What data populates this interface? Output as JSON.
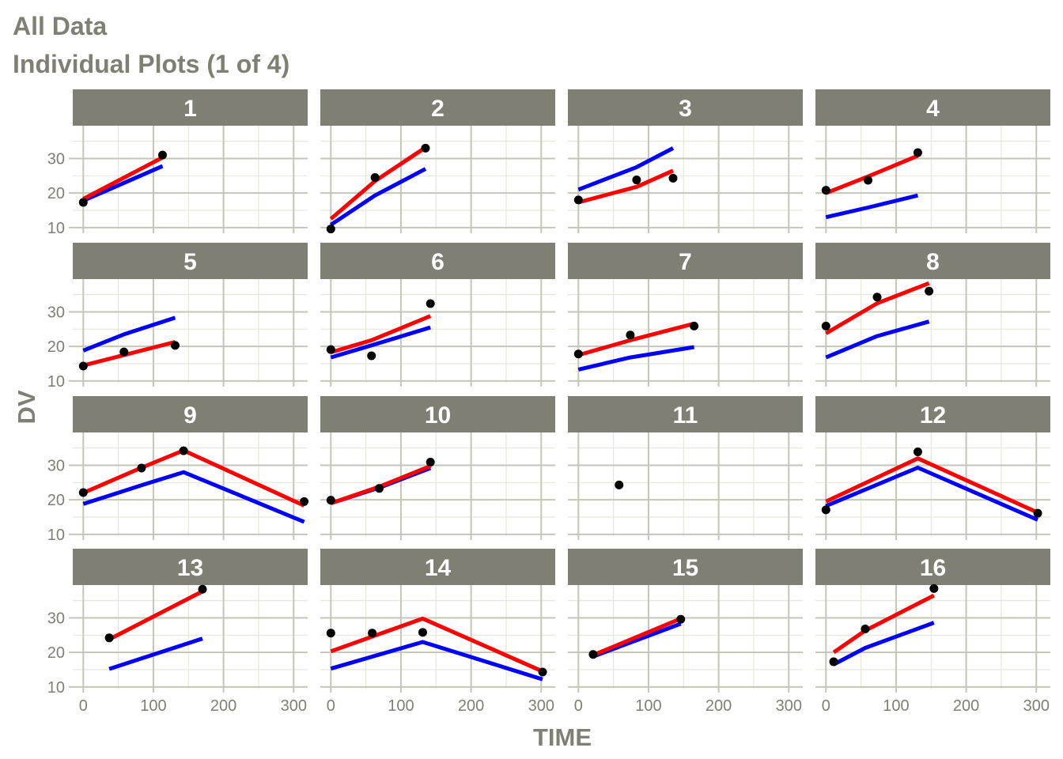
{
  "title": "All Data",
  "subtitle": "Individual Plots (1 of 4)",
  "colors": {
    "strip_bg": "#7f7f74",
    "strip_text": "#ffffff",
    "panel_bg": "#ffffff",
    "grid_major": "#c6c6b8",
    "grid_minor": "#e7e7da",
    "text": "#7f7f74",
    "observed": "#000000",
    "individual_pred": "#ff0000",
    "population_pred": "#0000ff"
  },
  "chart_data": {
    "type": "line",
    "facet_layout": {
      "rows": 4,
      "cols": 4
    },
    "xlabel": "TIME",
    "ylabel": "DV",
    "xlim": [
      -15,
      320
    ],
    "ylim": [
      9.5,
      39.5
    ],
    "xticks": [
      0,
      100,
      200,
      300
    ],
    "yticks": [
      10,
      20,
      30
    ],
    "grid": true,
    "series_styles": [
      {
        "key": "dv",
        "mark": "point",
        "color": "#000000"
      },
      {
        "key": "ipred",
        "mark": "line",
        "color": "#ff0000"
      },
      {
        "key": "pred",
        "mark": "line",
        "color": "#0000ff"
      }
    ],
    "panels": [
      {
        "id": "1",
        "dv": [
          [
            0,
            17.3
          ],
          [
            113,
            31.0
          ]
        ],
        "ipred": [
          [
            0,
            18.3
          ],
          [
            113,
            30.3
          ]
        ],
        "pred": [
          [
            0,
            17.8
          ],
          [
            113,
            27.8
          ]
        ]
      },
      {
        "id": "2",
        "dv": [
          [
            0,
            9.6
          ],
          [
            63,
            24.5
          ],
          [
            135,
            33.0
          ]
        ],
        "ipred": [
          [
            0,
            12.5
          ],
          [
            63,
            23.5
          ],
          [
            135,
            33.2
          ]
        ],
        "pred": [
          [
            0,
            10.8
          ],
          [
            63,
            19.3
          ],
          [
            135,
            27.0
          ]
        ]
      },
      {
        "id": "3",
        "dv": [
          [
            0,
            18.0
          ],
          [
            83,
            23.8
          ],
          [
            135,
            24.3
          ]
        ],
        "ipred": [
          [
            0,
            17.3
          ],
          [
            83,
            21.8
          ],
          [
            135,
            26.5
          ]
        ],
        "pred": [
          [
            0,
            21.0
          ],
          [
            83,
            27.5
          ],
          [
            135,
            33.0
          ]
        ]
      },
      {
        "id": "4",
        "dv": [
          [
            0,
            20.8
          ],
          [
            60,
            23.7
          ],
          [
            131,
            31.7
          ]
        ],
        "ipred": [
          [
            0,
            20.0
          ],
          [
            60,
            24.8
          ],
          [
            131,
            30.8
          ]
        ],
        "pred": [
          [
            0,
            13.0
          ],
          [
            60,
            15.8
          ],
          [
            131,
            19.3
          ]
        ]
      },
      {
        "id": "5",
        "dv": [
          [
            0,
            14.3
          ],
          [
            58,
            18.4
          ],
          [
            131,
            20.3
          ]
        ],
        "ipred": [
          [
            0,
            14.5
          ],
          [
            58,
            17.5
          ],
          [
            131,
            21.3
          ]
        ],
        "pred": [
          [
            0,
            18.8
          ],
          [
            58,
            23.5
          ],
          [
            131,
            28.3
          ]
        ]
      },
      {
        "id": "6",
        "dv": [
          [
            0,
            19.1
          ],
          [
            58,
            17.3
          ],
          [
            142,
            32.4
          ]
        ],
        "ipred": [
          [
            0,
            18.3
          ],
          [
            58,
            21.8
          ],
          [
            142,
            28.8
          ]
        ],
        "pred": [
          [
            0,
            16.8
          ],
          [
            58,
            20.3
          ],
          [
            142,
            25.5
          ]
        ]
      },
      {
        "id": "7",
        "dv": [
          [
            0,
            17.8
          ],
          [
            74,
            23.3
          ],
          [
            165,
            25.9
          ]
        ],
        "ipred": [
          [
            0,
            17.5
          ],
          [
            74,
            21.8
          ],
          [
            165,
            26.6
          ]
        ],
        "pred": [
          [
            0,
            13.3
          ],
          [
            74,
            16.8
          ],
          [
            165,
            19.8
          ]
        ]
      },
      {
        "id": "8",
        "dv": [
          [
            0,
            25.9
          ],
          [
            73,
            34.3
          ],
          [
            147,
            36.0
          ]
        ],
        "ipred": [
          [
            0,
            23.8
          ],
          [
            73,
            32.5
          ],
          [
            147,
            38.3
          ]
        ],
        "pred": [
          [
            0,
            16.8
          ],
          [
            73,
            23.0
          ],
          [
            147,
            27.2
          ]
        ]
      },
      {
        "id": "9",
        "dv": [
          [
            0,
            22.1
          ],
          [
            83,
            29.2
          ],
          [
            143,
            34.2
          ],
          [
            315,
            19.5
          ]
        ],
        "ipred": [
          [
            0,
            22.0
          ],
          [
            83,
            29.3
          ],
          [
            143,
            34.3
          ],
          [
            315,
            18.3
          ]
        ],
        "pred": [
          [
            0,
            18.8
          ],
          [
            83,
            24.2
          ],
          [
            143,
            28.0
          ],
          [
            315,
            13.6
          ]
        ]
      },
      {
        "id": "10",
        "dv": [
          [
            0,
            19.9
          ],
          [
            69,
            23.3
          ],
          [
            142,
            30.9
          ]
        ],
        "ipred": [
          [
            0,
            19.0
          ],
          [
            69,
            23.8
          ],
          [
            142,
            29.8
          ]
        ],
        "pred": [
          [
            0,
            19.0
          ],
          [
            69,
            23.5
          ],
          [
            142,
            29.2
          ]
        ]
      },
      {
        "id": "11",
        "dv": [
          [
            58,
            24.3
          ]
        ],
        "ipred": [],
        "pred": []
      },
      {
        "id": "12",
        "dv": [
          [
            0,
            17.1
          ],
          [
            131,
            33.9
          ],
          [
            302,
            16.1
          ]
        ],
        "ipred": [
          [
            0,
            19.5
          ],
          [
            131,
            32.0
          ],
          [
            302,
            16.3
          ]
        ],
        "pred": [
          [
            0,
            18.2
          ],
          [
            131,
            29.3
          ],
          [
            302,
            14.2
          ]
        ]
      },
      {
        "id": "13",
        "dv": [
          [
            37,
            24.2
          ],
          [
            170,
            38.3
          ]
        ],
        "ipred": [
          [
            37,
            23.8
          ],
          [
            170,
            37.7
          ]
        ],
        "pred": [
          [
            37,
            15.2
          ],
          [
            170,
            24.0
          ]
        ]
      },
      {
        "id": "14",
        "dv": [
          [
            0,
            25.6
          ],
          [
            59,
            25.6
          ],
          [
            131,
            25.8
          ],
          [
            302,
            14.3
          ]
        ],
        "ipred": [
          [
            0,
            20.3
          ],
          [
            131,
            29.8
          ],
          [
            302,
            14.5
          ]
        ],
        "pred": [
          [
            0,
            15.3
          ],
          [
            131,
            23.0
          ],
          [
            302,
            12.2
          ]
        ]
      },
      {
        "id": "15",
        "dv": [
          [
            21,
            19.4
          ],
          [
            146,
            29.6
          ]
        ],
        "ipred": [
          [
            21,
            19.2
          ],
          [
            146,
            29.8
          ]
        ],
        "pred": [
          [
            21,
            18.8
          ],
          [
            146,
            28.3
          ]
        ]
      },
      {
        "id": "16",
        "dv": [
          [
            11,
            17.3
          ],
          [
            56,
            26.8
          ],
          [
            154,
            38.5
          ]
        ],
        "ipred": [
          [
            11,
            20.0
          ],
          [
            56,
            26.3
          ],
          [
            154,
            36.5
          ]
        ],
        "pred": [
          [
            11,
            16.5
          ],
          [
            56,
            21.3
          ],
          [
            154,
            28.6
          ]
        ]
      }
    ]
  }
}
